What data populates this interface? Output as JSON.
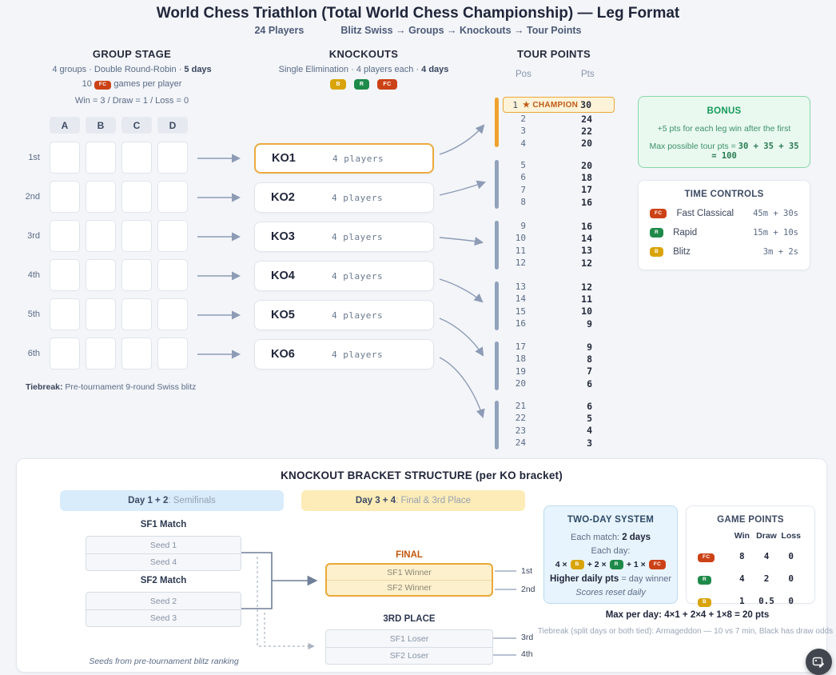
{
  "header": {
    "title": "World Chess Triathlon (Total World Chess Championship) — Leg Format",
    "players": "24 Players",
    "flow": "Blitz Swiss → Groups → Knockouts → Tour Points"
  },
  "group_stage": {
    "title": "GROUP STAGE",
    "subtitle_prefix": "4 groups · Double Round-Robin · ",
    "subtitle_bold": "5 days",
    "games_prefix": "10",
    "games_badge": "FC",
    "games_suffix": "games per player",
    "scoring": "Win = 3 / Draw = 1 / Loss = 0",
    "columns": [
      "A",
      "B",
      "C",
      "D"
    ],
    "rows": [
      "1st",
      "2nd",
      "3rd",
      "4th",
      "5th",
      "6th"
    ],
    "tiebreak_label": "Tiebreak:",
    "tiebreak_text": "Pre-tournament 9-round Swiss blitz"
  },
  "knockouts": {
    "title": "KNOCKOUTS",
    "subtitle_prefix": "Single Elimination · 4 players each · ",
    "subtitle_bold": "4 days",
    "badges": [
      "B",
      "R",
      "FC"
    ],
    "brackets": [
      {
        "name": "KO1",
        "detail": "4 players"
      },
      {
        "name": "KO2",
        "detail": "4 players"
      },
      {
        "name": "KO3",
        "detail": "4 players"
      },
      {
        "name": "KO4",
        "detail": "4 players"
      },
      {
        "name": "KO5",
        "detail": "4 players"
      },
      {
        "name": "KO6",
        "detail": "4 players"
      }
    ]
  },
  "tour_points": {
    "title": "TOUR POINTS",
    "col_pos": "Pos",
    "col_pts": "Pts",
    "champion_label": "★ CHAMPION",
    "groups": [
      {
        "rows": [
          {
            "pos": "1",
            "pts": "30"
          },
          {
            "pos": "2",
            "pts": "24"
          },
          {
            "pos": "3",
            "pts": "22"
          },
          {
            "pos": "4",
            "pts": "20"
          }
        ]
      },
      {
        "rows": [
          {
            "pos": "5",
            "pts": "20"
          },
          {
            "pos": "6",
            "pts": "18"
          },
          {
            "pos": "7",
            "pts": "17"
          },
          {
            "pos": "8",
            "pts": "16"
          }
        ]
      },
      {
        "rows": [
          {
            "pos": "9",
            "pts": "16"
          },
          {
            "pos": "10",
            "pts": "14"
          },
          {
            "pos": "11",
            "pts": "13"
          },
          {
            "pos": "12",
            "pts": "12"
          }
        ]
      },
      {
        "rows": [
          {
            "pos": "13",
            "pts": "12"
          },
          {
            "pos": "14",
            "pts": "11"
          },
          {
            "pos": "15",
            "pts": "10"
          },
          {
            "pos": "16",
            "pts": "9"
          }
        ]
      },
      {
        "rows": [
          {
            "pos": "17",
            "pts": "9"
          },
          {
            "pos": "18",
            "pts": "8"
          },
          {
            "pos": "19",
            "pts": "7"
          },
          {
            "pos": "20",
            "pts": "6"
          }
        ]
      },
      {
        "rows": [
          {
            "pos": "21",
            "pts": "6"
          },
          {
            "pos": "22",
            "pts": "5"
          },
          {
            "pos": "23",
            "pts": "4"
          },
          {
            "pos": "24",
            "pts": "3"
          }
        ]
      }
    ]
  },
  "bonus": {
    "title": "BONUS",
    "line1": "+5 pts for each leg win after the first",
    "line2_prefix": "Max possible tour pts = ",
    "line2_math": "30 + 35 + 35 = 100"
  },
  "time_controls": {
    "title": "TIME CONTROLS",
    "rows": [
      {
        "badge": "FC",
        "name": "Fast Classical",
        "time": "45m + 30s"
      },
      {
        "badge": "R",
        "name": "Rapid",
        "time": "15m + 10s"
      },
      {
        "badge": "B",
        "name": "Blitz",
        "time": "3m + 2s"
      }
    ]
  },
  "bracket_structure": {
    "title": "KNOCKOUT BRACKET STRUCTURE (per KO bracket)",
    "day12_bold": "Day 1 + 2",
    "day12_rest": " : Semifinals",
    "day34_bold": "Day 3 + 4",
    "day34_rest": " : Final & 3rd Place",
    "sf1_label": "SF1 Match",
    "sf1_seeds": [
      "Seed 1",
      "Seed 4"
    ],
    "sf2_label": "SF2 Match",
    "sf2_seeds": [
      "Seed 2",
      "Seed 3"
    ],
    "final_label": "FINAL",
    "final_rows": [
      "SF1 Winner",
      "SF2 Winner"
    ],
    "final_places": [
      "1st",
      "2nd"
    ],
    "third_label": "3RD PLACE",
    "third_rows": [
      "SF1 Loser",
      "SF2 Loser"
    ],
    "third_places": [
      "3rd",
      "4th"
    ],
    "seeds_note": "Seeds from pre-tournament blitz ranking"
  },
  "two_day": {
    "title": "TWO-DAY SYSTEM",
    "match_prefix": "Each match: ",
    "match_bold": "2 days",
    "day_label": "Each day:",
    "f_t1": "4 ×",
    "f_b1": "B",
    "f_t2": "+ 2 ×",
    "f_b2": "R",
    "f_t3": "+ 1 ×",
    "f_b3": "FC",
    "higher_bold": "Higher daily pts",
    "higher_rest": " = day winner",
    "reset_note": "Scores reset daily"
  },
  "game_points": {
    "title": "GAME POINTS",
    "headers": [
      "Win",
      "Draw",
      "Loss"
    ],
    "rows": [
      {
        "badge": "FC",
        "win": "8",
        "draw": "4",
        "loss": "0"
      },
      {
        "badge": "R",
        "win": "4",
        "draw": "2",
        "loss": "0"
      },
      {
        "badge": "B",
        "win": "1",
        "draw": "0.5",
        "loss": "0"
      }
    ]
  },
  "footer": {
    "max_per_day": "Max per day: 4×1 + 2×4 + 1×8 = 20 pts",
    "tiebreak": "Tiebreak (split days or both tied): Armageddon — 10 vs 7 min, Black has draw odds"
  },
  "fab": {
    "icon": "image-edit-icon"
  },
  "colors": {
    "badges": {
      "FC": "#cc4217",
      "R": "#1e8a4a",
      "B": "#d9a40a"
    },
    "accent_orange": "#efa32f",
    "bar_default": "#92a2bc",
    "arrow": "#8d9bb5",
    "champion_text": "#bf5a16",
    "bonus_green": "#149a58"
  }
}
